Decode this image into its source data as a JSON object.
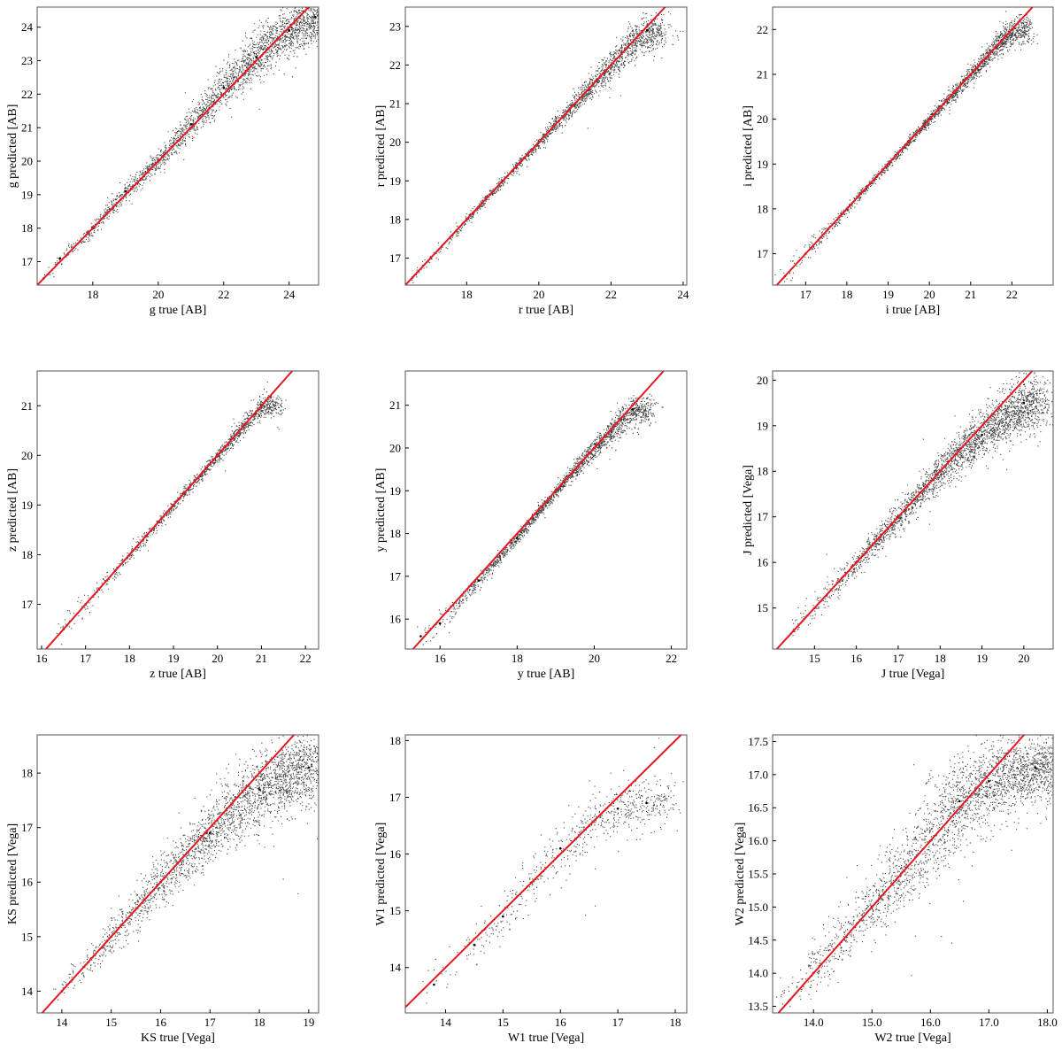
{
  "chart_data": [
    {
      "type": "scatter",
      "band": "g",
      "xlabel": "g true [AB]",
      "ylabel": "g predicted [AB]",
      "xlim": [
        16.3,
        24.9
      ],
      "ylim": [
        16.3,
        24.6
      ],
      "xticks": [
        18,
        20,
        22,
        24
      ],
      "yticks": [
        17,
        18,
        19,
        20,
        21,
        22,
        23,
        24
      ],
      "tick_decimals": 0,
      "series": [
        {
          "kind": "points",
          "density": "very dense",
          "spread_by_magnitude": [
            [
              16.5,
              0.1
            ],
            [
              18,
              0.15
            ],
            [
              20,
              0.2
            ],
            [
              22,
              0.35
            ],
            [
              24,
              0.6
            ]
          ],
          "sample": [
            [
              16.5,
              16.5
            ],
            [
              17,
              17.1
            ],
            [
              18,
              18.0
            ],
            [
              19,
              19.1
            ],
            [
              20,
              20.0
            ],
            [
              21,
              21.1
            ],
            [
              22,
              22.2
            ],
            [
              23,
              23.1
            ],
            [
              24,
              23.9
            ],
            [
              24.8,
              24.3
            ]
          ]
        },
        {
          "kind": "line",
          "name": "",
          "color": "#e8171d",
          "from": [
            16.3,
            16.3
          ],
          "to": [
            24.9,
            24.9
          ]
        }
      ]
    },
    {
      "type": "scatter",
      "band": "r",
      "xlabel": "r true [AB]",
      "ylabel": "r predicted [AB]",
      "xlim": [
        16.3,
        24.1
      ],
      "ylim": [
        16.3,
        23.5
      ],
      "xticks": [
        18,
        20,
        22,
        24
      ],
      "yticks": [
        17,
        18,
        19,
        20,
        21,
        22,
        23
      ],
      "tick_decimals": 0,
      "series": [
        {
          "kind": "points",
          "density": "dense",
          "spread_by_magnitude": [
            [
              16.5,
              0.15
            ],
            [
              18,
              0.08
            ],
            [
              20,
              0.1
            ],
            [
              22,
              0.25
            ],
            [
              23.5,
              0.4
            ]
          ],
          "sample": [
            [
              16.5,
              16.5
            ],
            [
              17,
              17.0
            ],
            [
              18,
              18.0
            ],
            [
              19,
              19.0
            ],
            [
              20,
              20.0
            ],
            [
              21,
              21.0
            ],
            [
              22,
              22.0
            ],
            [
              23,
              22.9
            ]
          ]
        },
        {
          "kind": "line",
          "name": "",
          "color": "#e8171d",
          "from": [
            16.3,
            16.3
          ],
          "to": [
            23.5,
            23.5
          ]
        }
      ]
    },
    {
      "type": "scatter",
      "band": "i",
      "xlabel": "i true [AB]",
      "ylabel": "i predicted [AB]",
      "xlim": [
        16.2,
        23.0
      ],
      "ylim": [
        16.3,
        22.5
      ],
      "xticks": [
        17,
        18,
        19,
        20,
        21,
        22
      ],
      "yticks": [
        17,
        18,
        19,
        20,
        21,
        22
      ],
      "tick_decimals": 0,
      "series": [
        {
          "kind": "points",
          "density": "dense",
          "spread_by_magnitude": [
            [
              16.5,
              0.2
            ],
            [
              18,
              0.07
            ],
            [
              20,
              0.07
            ],
            [
              21.5,
              0.15
            ],
            [
              22.5,
              0.3
            ]
          ],
          "sample": [
            [
              16.5,
              16.5
            ],
            [
              17,
              17.0
            ],
            [
              18,
              18.0
            ],
            [
              19,
              19.0
            ],
            [
              20,
              20.0
            ],
            [
              21,
              21.0
            ],
            [
              22,
              22.0
            ]
          ]
        },
        {
          "kind": "line",
          "name": "",
          "color": "#e8171d",
          "from": [
            16.3,
            16.3
          ],
          "to": [
            22.5,
            22.5
          ]
        }
      ]
    },
    {
      "type": "scatter",
      "band": "z",
      "xlabel": "z true [AB]",
      "ylabel": "z predicted [AB]",
      "xlim": [
        15.9,
        22.3
      ],
      "ylim": [
        16.1,
        21.7
      ],
      "xticks": [
        16,
        17,
        18,
        19,
        20,
        21,
        22
      ],
      "yticks": [
        17,
        18,
        19,
        20,
        21
      ],
      "tick_decimals": 0,
      "series": [
        {
          "kind": "points",
          "density": "medium",
          "spread_by_magnitude": [
            [
              16.2,
              0.25
            ],
            [
              18,
              0.07
            ],
            [
              20,
              0.08
            ],
            [
              21.5,
              0.2
            ]
          ],
          "sample": [
            [
              16.5,
              16.5
            ],
            [
              17,
              17.0
            ],
            [
              18,
              18.0
            ],
            [
              19,
              19.0
            ],
            [
              20,
              20.0
            ],
            [
              21,
              21.0
            ]
          ]
        },
        {
          "kind": "line",
          "name": "",
          "color": "#e8171d",
          "from": [
            16.1,
            16.1
          ],
          "to": [
            21.7,
            21.7
          ]
        }
      ]
    },
    {
      "type": "scatter",
      "band": "y",
      "xlabel": "y true [AB]",
      "ylabel": "y predicted [AB]",
      "xlim": [
        15.1,
        22.4
      ],
      "ylim": [
        15.3,
        21.8
      ],
      "xticks": [
        16,
        18,
        20,
        22
      ],
      "yticks": [
        16,
        17,
        18,
        19,
        20,
        21
      ],
      "tick_decimals": 0,
      "series": [
        {
          "kind": "points",
          "density": "dense",
          "spread_by_magnitude": [
            [
              15.5,
              0.2
            ],
            [
              17,
              0.1
            ],
            [
              19,
              0.08
            ],
            [
              21,
              0.25
            ],
            [
              22,
              0.35
            ]
          ],
          "sample": [
            [
              15.5,
              15.6
            ],
            [
              16,
              15.9
            ],
            [
              17,
              16.9
            ],
            [
              18,
              17.9
            ],
            [
              19,
              19.0
            ],
            [
              20,
              20.0
            ],
            [
              21,
              20.9
            ]
          ]
        },
        {
          "kind": "line",
          "name": "",
          "color": "#e8171d",
          "from": [
            15.3,
            15.3
          ],
          "to": [
            21.8,
            21.8
          ]
        }
      ]
    },
    {
      "type": "scatter",
      "band": "J",
      "xlabel": "J true [Vega]",
      "ylabel": "J predicted [Vega]",
      "xlim": [
        14.0,
        20.7
      ],
      "ylim": [
        14.1,
        20.2
      ],
      "xticks": [
        15,
        16,
        17,
        18,
        19,
        20
      ],
      "yticks": [
        15,
        16,
        17,
        18,
        19,
        20
      ],
      "tick_decimals": 0,
      "series": [
        {
          "kind": "points",
          "density": "very dense",
          "spread_by_magnitude": [
            [
              14.2,
              0.2
            ],
            [
              16,
              0.15
            ],
            [
              18,
              0.25
            ],
            [
              19.5,
              0.4
            ],
            [
              20.5,
              0.5
            ]
          ],
          "sample": [
            [
              14.5,
              14.5
            ],
            [
              15,
              15.0
            ],
            [
              16,
              16.0
            ],
            [
              17,
              17.0
            ],
            [
              18,
              18.0
            ],
            [
              19,
              18.8
            ],
            [
              20,
              19.5
            ]
          ]
        },
        {
          "kind": "line",
          "name": "",
          "color": "#e8171d",
          "from": [
            14.1,
            14.1
          ],
          "to": [
            20.2,
            20.2
          ]
        }
      ]
    },
    {
      "type": "scatter",
      "band": "KS",
      "xlabel": "KS true [Vega]",
      "ylabel": "KS predicted [Vega]",
      "xlim": [
        13.5,
        19.2
      ],
      "ylim": [
        13.6,
        18.7
      ],
      "xticks": [
        14,
        15,
        16,
        17,
        18,
        19
      ],
      "yticks": [
        14,
        15,
        16,
        17,
        18
      ],
      "tick_decimals": 0,
      "series": [
        {
          "kind": "points",
          "density": "very dense",
          "spread_by_magnitude": [
            [
              13.7,
              0.15
            ],
            [
              15,
              0.2
            ],
            [
              16.5,
              0.35
            ],
            [
              18,
              0.5
            ],
            [
              19,
              0.55
            ]
          ],
          "sample": [
            [
              14,
              14.0
            ],
            [
              15,
              15.0
            ],
            [
              16,
              16.0
            ],
            [
              17,
              16.9
            ],
            [
              18,
              17.7
            ],
            [
              19,
              18.1
            ]
          ]
        },
        {
          "kind": "line",
          "name": "",
          "color": "#e8171d",
          "from": [
            13.6,
            13.6
          ],
          "to": [
            18.7,
            18.7
          ]
        }
      ]
    },
    {
      "type": "scatter",
      "band": "W1",
      "xlabel": "W1 true [Vega]",
      "ylabel": "W1 predicted [Vega]",
      "xlim": [
        13.3,
        18.2
      ],
      "ylim": [
        13.2,
        18.1
      ],
      "xticks": [
        14,
        15,
        16,
        17,
        18
      ],
      "yticks": [
        14,
        15,
        16,
        17,
        18
      ],
      "tick_decimals": 0,
      "series": [
        {
          "kind": "points",
          "density": "sparse",
          "spread_by_magnitude": [
            [
              13.8,
              0.3
            ],
            [
              15,
              0.25
            ],
            [
              16,
              0.3
            ],
            [
              17,
              0.35
            ],
            [
              17.7,
              0.35
            ]
          ],
          "sample": [
            [
              13.8,
              13.7
            ],
            [
              14.5,
              14.4
            ],
            [
              15,
              14.9
            ],
            [
              15.5,
              15.5
            ],
            [
              16,
              16.1
            ],
            [
              16.5,
              16.5
            ],
            [
              17,
              16.8
            ],
            [
              17.5,
              16.9
            ]
          ]
        },
        {
          "kind": "line",
          "name": "",
          "color": "#e8171d",
          "from": [
            13.3,
            13.3
          ],
          "to": [
            18.2,
            18.2
          ]
        }
      ]
    },
    {
      "type": "scatter",
      "band": "W2",
      "xlabel": "W2 true [Vega]",
      "ylabel": "W2 predicted [Vega]",
      "xlim": [
        13.3,
        18.1
      ],
      "ylim": [
        13.4,
        17.6
      ],
      "xticks": [
        14,
        15,
        16,
        17,
        18
      ],
      "yticks": [
        13.5,
        14.0,
        14.5,
        15.0,
        15.5,
        16.0,
        16.5,
        17.0,
        17.5
      ],
      "tick_decimals": 1,
      "series": [
        {
          "kind": "points",
          "density": "very dense",
          "spread_by_magnitude": [
            [
              13.6,
              0.2
            ],
            [
              15,
              0.3
            ],
            [
              16,
              0.45
            ],
            [
              17,
              0.45
            ],
            [
              18,
              0.4
            ]
          ],
          "sample": [
            [
              13.6,
              13.6
            ],
            [
              14,
              14.0
            ],
            [
              15,
              15.0
            ],
            [
              16,
              16.0
            ],
            [
              16.5,
              16.6
            ],
            [
              17,
              16.9
            ],
            [
              17.8,
              17.1
            ]
          ]
        },
        {
          "kind": "line",
          "name": "",
          "color": "#e8171d",
          "from": [
            13.4,
            13.4
          ],
          "to": [
            17.6,
            17.6
          ]
        }
      ]
    }
  ]
}
